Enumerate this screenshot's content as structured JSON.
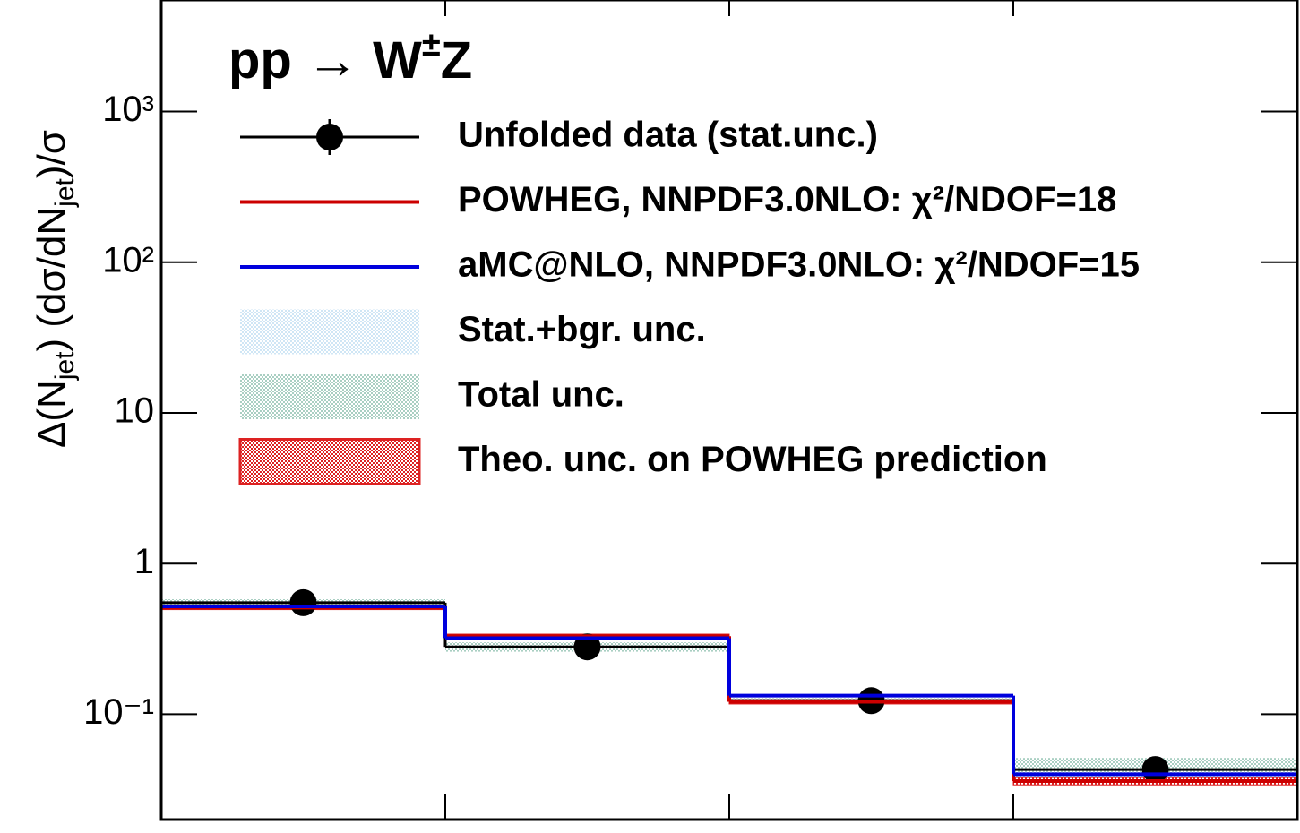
{
  "chart_data": {
    "type": "step",
    "logy": true,
    "title": [
      "pp  → W",
      "±",
      "Z"
    ],
    "ylabel": [
      "Δ(N",
      "jet",
      ") (dσ/dN",
      "jet",
      ")/σ"
    ],
    "categories": [
      null,
      null,
      null,
      null
    ],
    "ylim": [
      0.02,
      5500
    ],
    "yticks": [
      {
        "value": 0.1,
        "label": "10⁻¹"
      },
      1,
      10,
      {
        "value": 100,
        "label": "10²"
      },
      {
        "value": 1000,
        "label": "10³"
      }
    ],
    "series": [
      {
        "name": "Unfolded data (stat.unc.)",
        "kind": "points",
        "color": "#000000",
        "values": [
          0.55,
          0.28,
          0.123,
          0.043
        ],
        "errors": [
          0.02,
          0.015,
          0.008,
          0.004
        ]
      },
      {
        "name": "POWHEG, NNPDF3.0NLO: χ²/NDOF=18",
        "kind": "line",
        "color": "#cc0000",
        "values": [
          0.51,
          0.33,
          0.121,
          0.036
        ]
      },
      {
        "name": "aMC@NLO, NNPDF3.0NLO: χ²/NDOF=15",
        "kind": "line",
        "color": "#0000dd",
        "values": [
          0.52,
          0.32,
          0.133,
          0.04
        ]
      },
      {
        "name": "Stat.+bgr. unc.",
        "kind": "band",
        "color": "#cfe6f5",
        "low": [
          0.535,
          0.265,
          0.119,
          0.039
        ],
        "high": [
          0.57,
          0.295,
          0.127,
          0.048
        ]
      },
      {
        "name": "Total unc.",
        "kind": "band",
        "color": "#a9cfc2",
        "low": [
          0.53,
          0.26,
          0.118,
          0.0375
        ],
        "high": [
          0.58,
          0.3,
          0.128,
          0.0513
        ]
      },
      {
        "name": "Theo. unc. on POWHEG prediction",
        "kind": "band",
        "color": "#dd2222",
        "low": [
          0.495,
          0.32,
          0.117,
          0.034
        ],
        "high": [
          0.525,
          0.34,
          0.125,
          0.038
        ]
      }
    ]
  }
}
